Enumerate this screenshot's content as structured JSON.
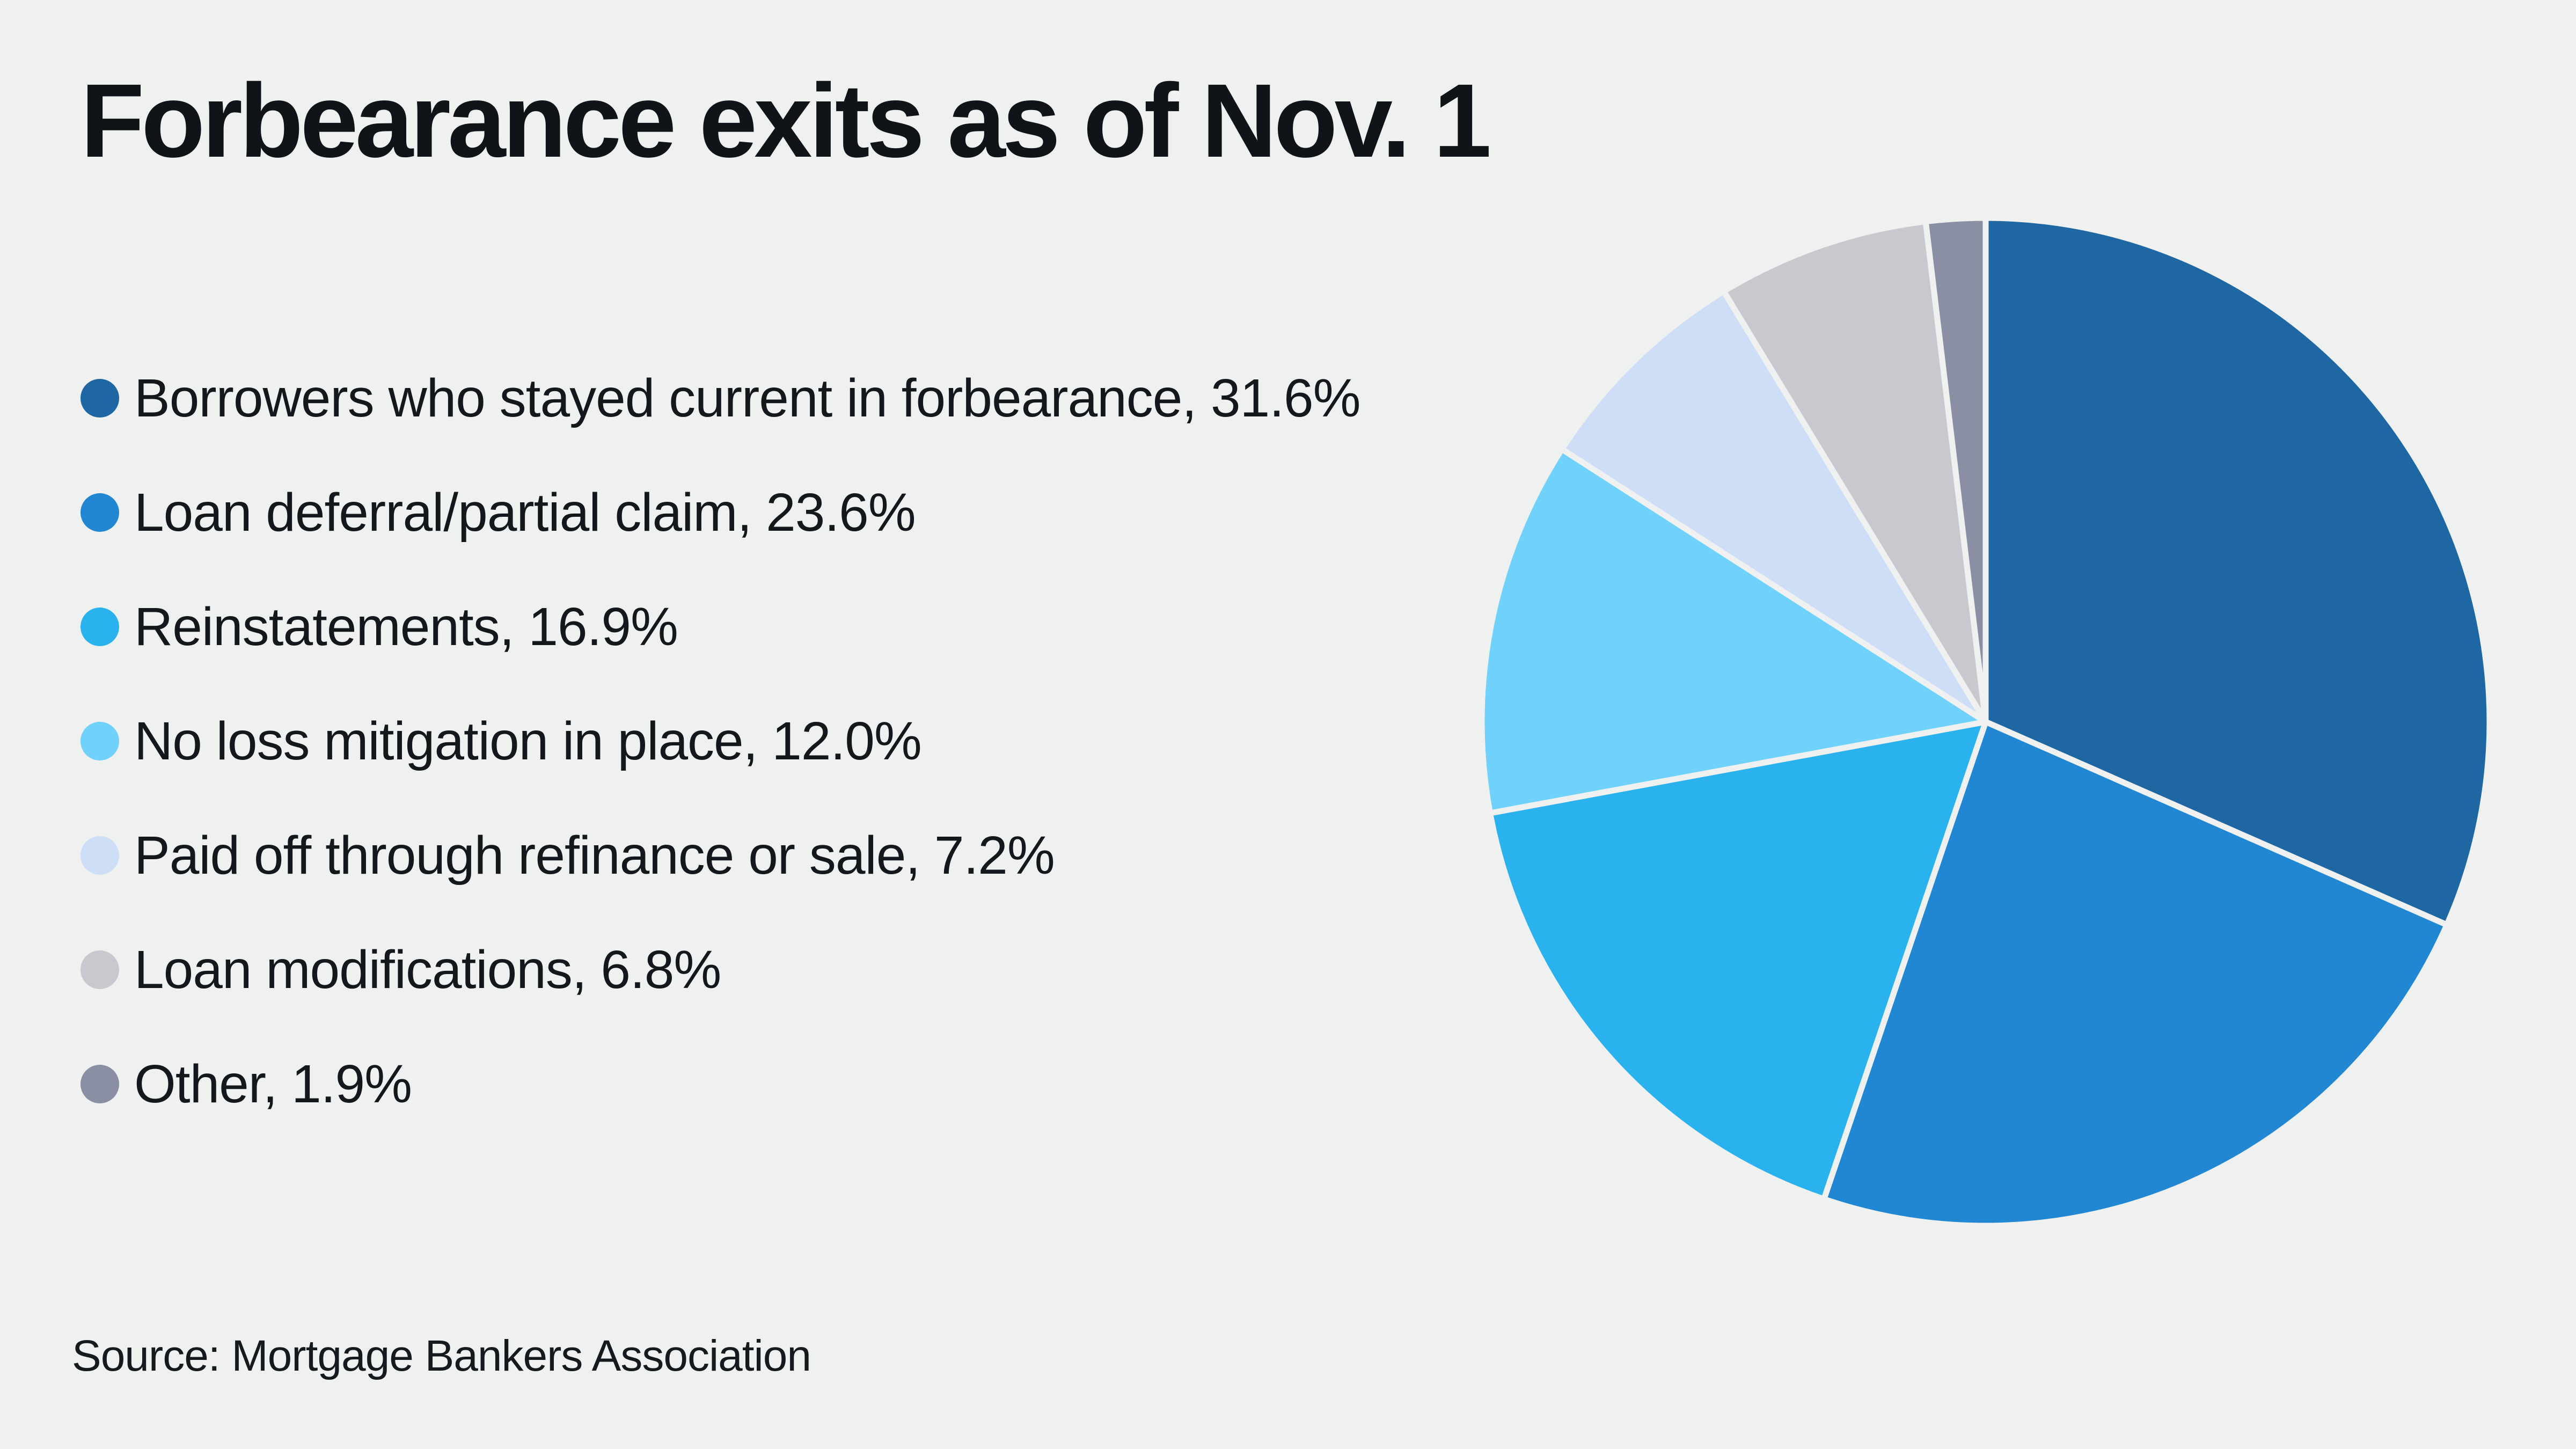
{
  "page": {
    "background_color": "#eff1f1"
  },
  "header": {
    "title": "Forbearance exits as of Nov. 1"
  },
  "legend": {
    "items": [
      {
        "text": "Borrowers who stayed current in forbearance, 31.6%",
        "color": "#1e67a2"
      },
      {
        "text": "Loan deferral/partial claim, 23.6%",
        "color": "#2187d3"
      },
      {
        "text": "Reinstatements, 16.9%",
        "color": "#29b2ee"
      },
      {
        "text": "No loss mitigation in place, 12.0%",
        "color": "#70d1fb"
      },
      {
        "text": "Paid off through refinance or sale, 7.2%",
        "color": "#cedef6"
      },
      {
        "text": "Loan modifications, 6.8%",
        "color": "#c7c9ce"
      },
      {
        "text": "Other, 1.9%",
        "color": "#8b8fa4"
      }
    ]
  },
  "chart_data": {
    "type": "pie",
    "title": "Forbearance exits as of Nov. 1",
    "labels": [
      "Borrowers who stayed current in forbearance",
      "Loan deferral/partial claim",
      "Reinstatements",
      "No loss mitigation in place",
      "Paid off through refinance or sale",
      "Loan modifications",
      "Other"
    ],
    "values": [
      31.6,
      23.6,
      16.9,
      12.0,
      7.2,
      6.8,
      1.9
    ],
    "unit": "%",
    "colors": [
      "#1e67a2",
      "#2187d3",
      "#29b2ee",
      "#70d1fb",
      "#cedef6",
      "#c7c9ce",
      "#8b8fa4"
    ],
    "start_angle": "12 o'clock",
    "direction": "clockwise",
    "legend_position": "left",
    "separator_color": "#eff1f1",
    "source": "Source: Mortgage Bankers Association"
  },
  "footer": {
    "source": "Source: Mortgage Bankers Association"
  }
}
